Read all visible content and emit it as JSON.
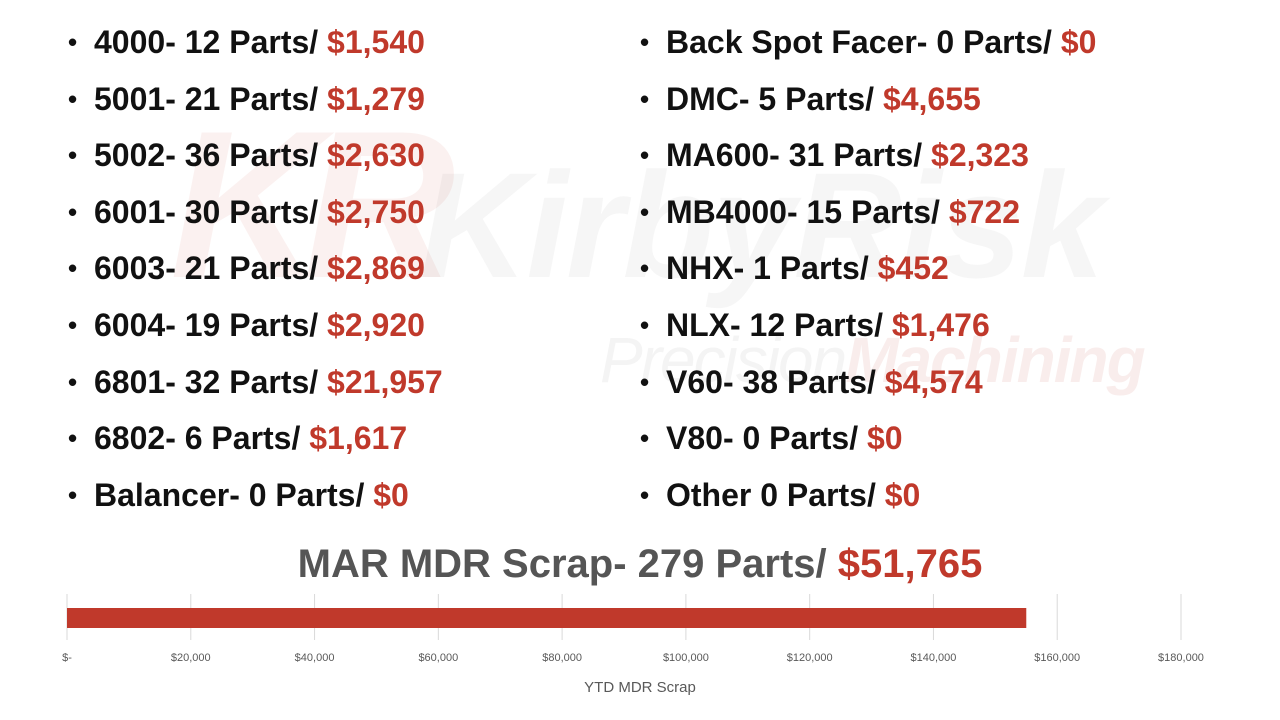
{
  "watermark": {
    "monogram": "KR",
    "brand": "KirbyRisk",
    "subtitle_a": "Precision",
    "subtitle_b": "Machining"
  },
  "left_items": [
    {
      "label": "4000- 12 Parts/ ",
      "cost": "$1,540"
    },
    {
      "label": "5001- 21 Parts/ ",
      "cost": "$1,279"
    },
    {
      "label": "5002- 36 Parts/ ",
      "cost": "$2,630"
    },
    {
      "label": "6001- 30 Parts/ ",
      "cost": "$2,750"
    },
    {
      "label": "6003- 21 Parts/ ",
      "cost": "$2,869"
    },
    {
      "label": "6004- 19 Parts/ ",
      "cost": "$2,920"
    },
    {
      "label": "6801- 32 Parts/ ",
      "cost": "$21,957"
    },
    {
      "label": "6802- 6 Parts/ ",
      "cost": "$1,617"
    },
    {
      "label": "Balancer- 0 Parts/ ",
      "cost": "$0"
    }
  ],
  "right_items": [
    {
      "label": "Back Spot Facer- 0 Parts/ ",
      "cost": "$0"
    },
    {
      "label": "DMC- 5 Parts/ ",
      "cost": "$4,655"
    },
    {
      "label": "MA600- 31 Parts/ ",
      "cost": "$2,323"
    },
    {
      "label": "MB4000- 15 Parts/ ",
      "cost": "$722"
    },
    {
      "label": "NHX- 1 Parts/ ",
      "cost": "$452"
    },
    {
      "label": "NLX- 12 Parts/ ",
      "cost": "$1,476"
    },
    {
      "label": "V60- 38 Parts/ ",
      "cost": "$4,574"
    },
    {
      "label": "V80- 0 Parts/ ",
      "cost": "$0"
    },
    {
      "label": "Other 0 Parts/ ",
      "cost": "$0"
    }
  ],
  "summary": {
    "label": "MAR MDR Scrap- 279 Parts/ ",
    "cost": "$51,765"
  },
  "colors": {
    "accent": "#c0392b",
    "text": "#111111",
    "summary_text": "#555555",
    "gridline": "#d9d9d9",
    "tick_label": "#595959"
  },
  "chart_data": {
    "type": "bar",
    "orientation": "horizontal",
    "categories": [
      ""
    ],
    "values": [
      155000
    ],
    "xlim": [
      0,
      180000
    ],
    "tick_values": [
      0,
      20000,
      40000,
      60000,
      80000,
      100000,
      120000,
      140000,
      160000,
      180000
    ],
    "tick_labels": [
      "$-",
      "$20,000",
      "$40,000",
      "$60,000",
      "$80,000",
      "$100,000",
      "$120,000",
      "$140,000",
      "$160,000",
      "$180,000"
    ],
    "xlabel": "YTD MDR Scrap",
    "grid": true,
    "legend": "none",
    "color": "#c0392b"
  }
}
